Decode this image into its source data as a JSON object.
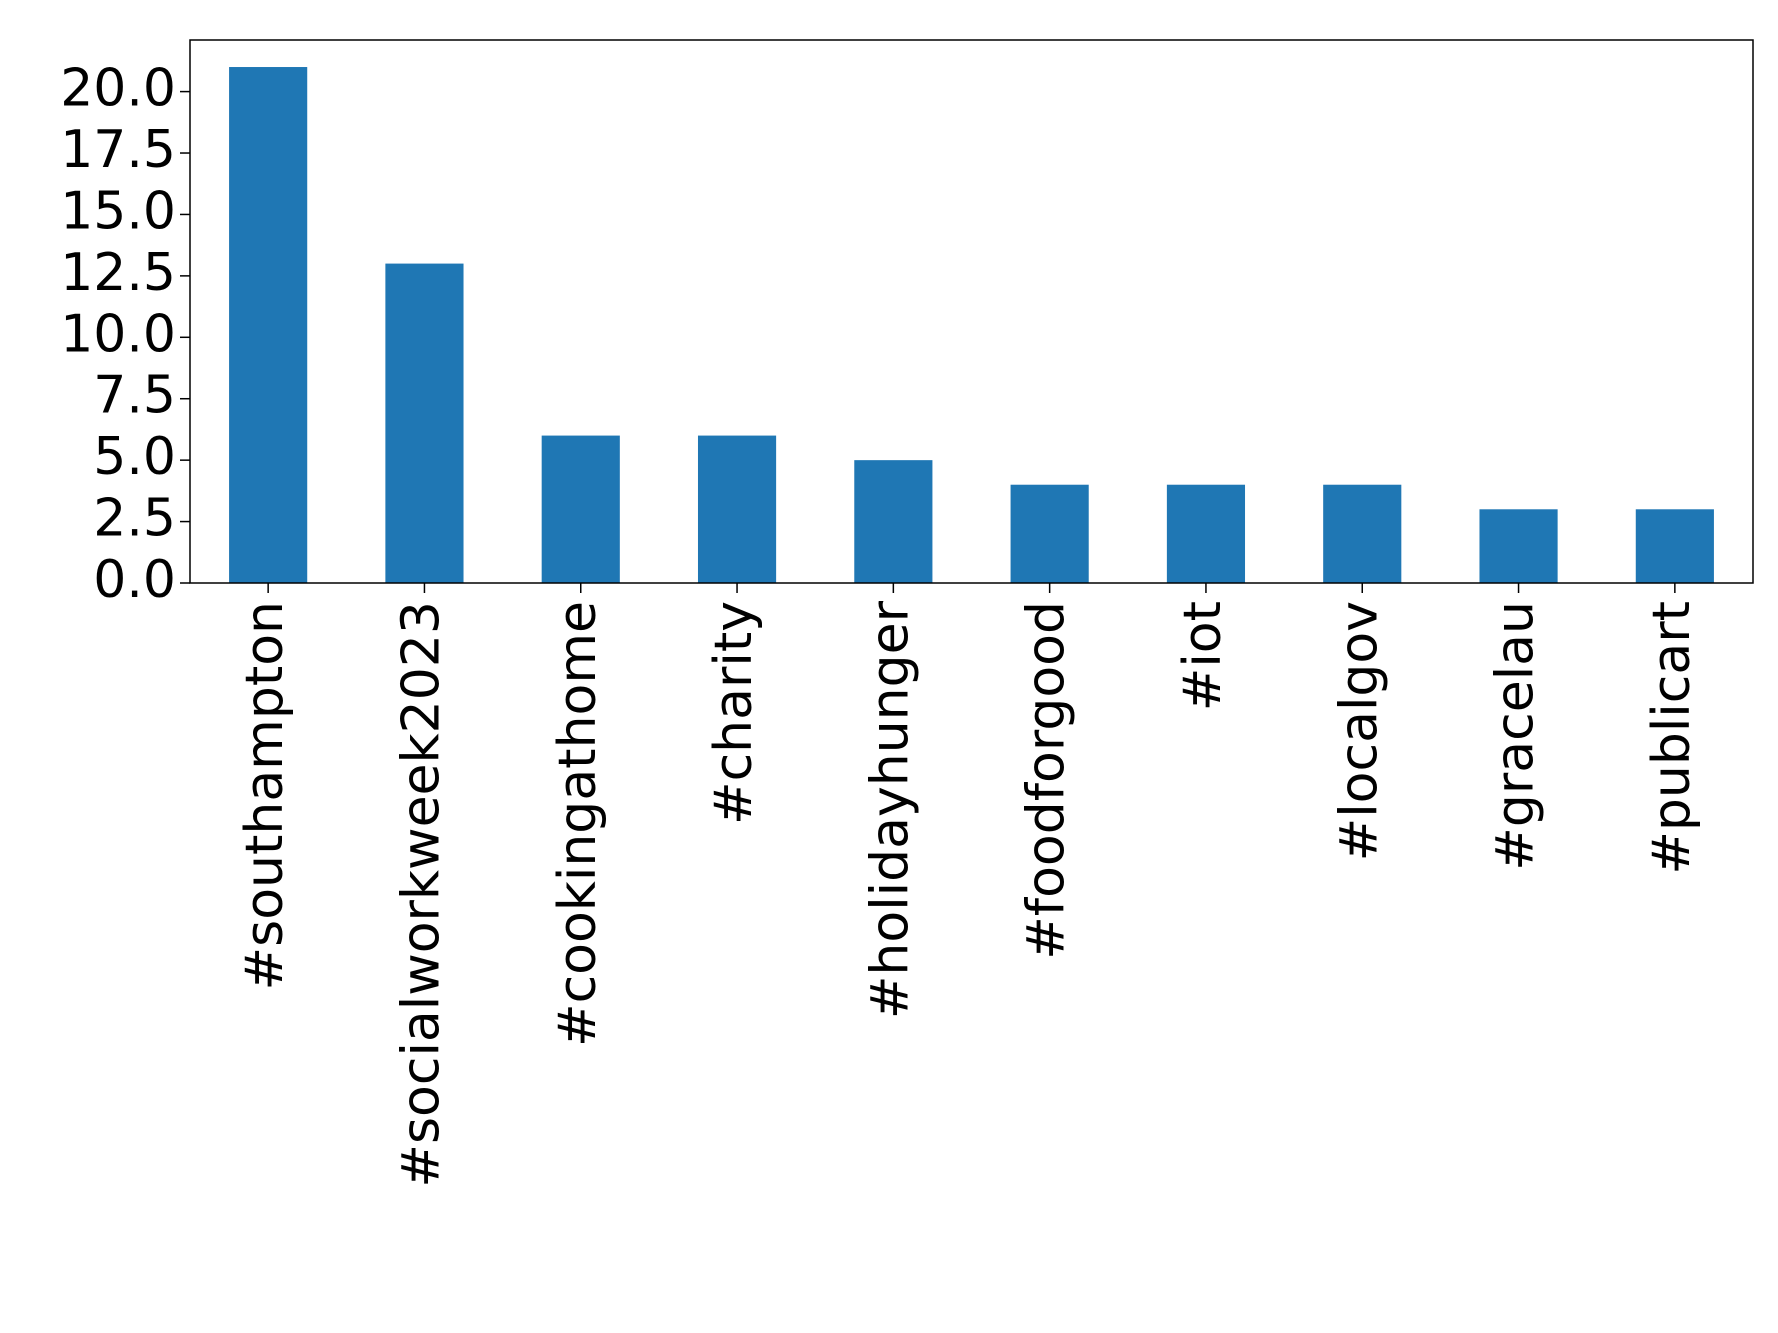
{
  "chart_data": {
    "type": "bar",
    "categories": [
      "#southampton",
      "#socialworkweek2023",
      "#cookingathome",
      "#charity",
      "#holidayhunger",
      "#foodforgood",
      "#iot",
      "#localgov",
      "#gracelau",
      "#publicart"
    ],
    "values": [
      21,
      13,
      6,
      6,
      5,
      4,
      4,
      4,
      3,
      3
    ],
    "color": "#1f77b4",
    "ylim": [
      0,
      22.1
    ],
    "yticks": [
      {
        "value": 0,
        "label": "0.0"
      },
      {
        "value": 2.5,
        "label": "2.5"
      },
      {
        "value": 5,
        "label": "5.0"
      },
      {
        "value": 7.5,
        "label": "7.5"
      },
      {
        "value": 10,
        "label": "10.0"
      },
      {
        "value": 12.5,
        "label": "12.5"
      },
      {
        "value": 15,
        "label": "15.0"
      },
      {
        "value": 17.5,
        "label": "17.5"
      },
      {
        "value": 20,
        "label": "20.0"
      }
    ],
    "grid": false
  }
}
